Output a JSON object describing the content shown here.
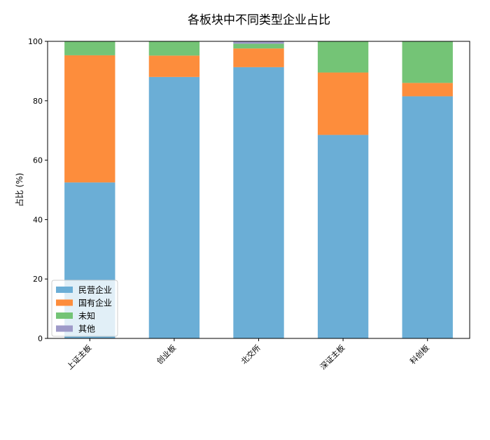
{
  "chart_data": {
    "type": "bar",
    "stacked": true,
    "title": "各板块中不同类型企业占比",
    "xlabel": "",
    "ylabel": "占比 (%)",
    "ylim": [
      0,
      100
    ],
    "yticks": [
      0,
      20,
      40,
      60,
      80,
      100
    ],
    "categories": [
      "上证主板",
      "创业板",
      "北交所",
      "深证主板",
      "科创板"
    ],
    "series": [
      {
        "name": "民营企业",
        "color": "#6baed6",
        "values": [
          52.5,
          88.0,
          91.3,
          68.5,
          81.5
        ]
      },
      {
        "name": "国有企业",
        "color": "#fd8d3c",
        "values": [
          42.8,
          7.2,
          6.3,
          21.0,
          4.5
        ]
      },
      {
        "name": "未知",
        "color": "#74c476",
        "values": [
          4.7,
          4.8,
          1.6,
          10.5,
          14.0
        ]
      },
      {
        "name": "其他",
        "color": "#9e9ac8",
        "values": [
          0.0,
          0.0,
          0.8,
          0.0,
          0.0
        ]
      }
    ],
    "grid": false,
    "legend_position": "lower-left"
  }
}
